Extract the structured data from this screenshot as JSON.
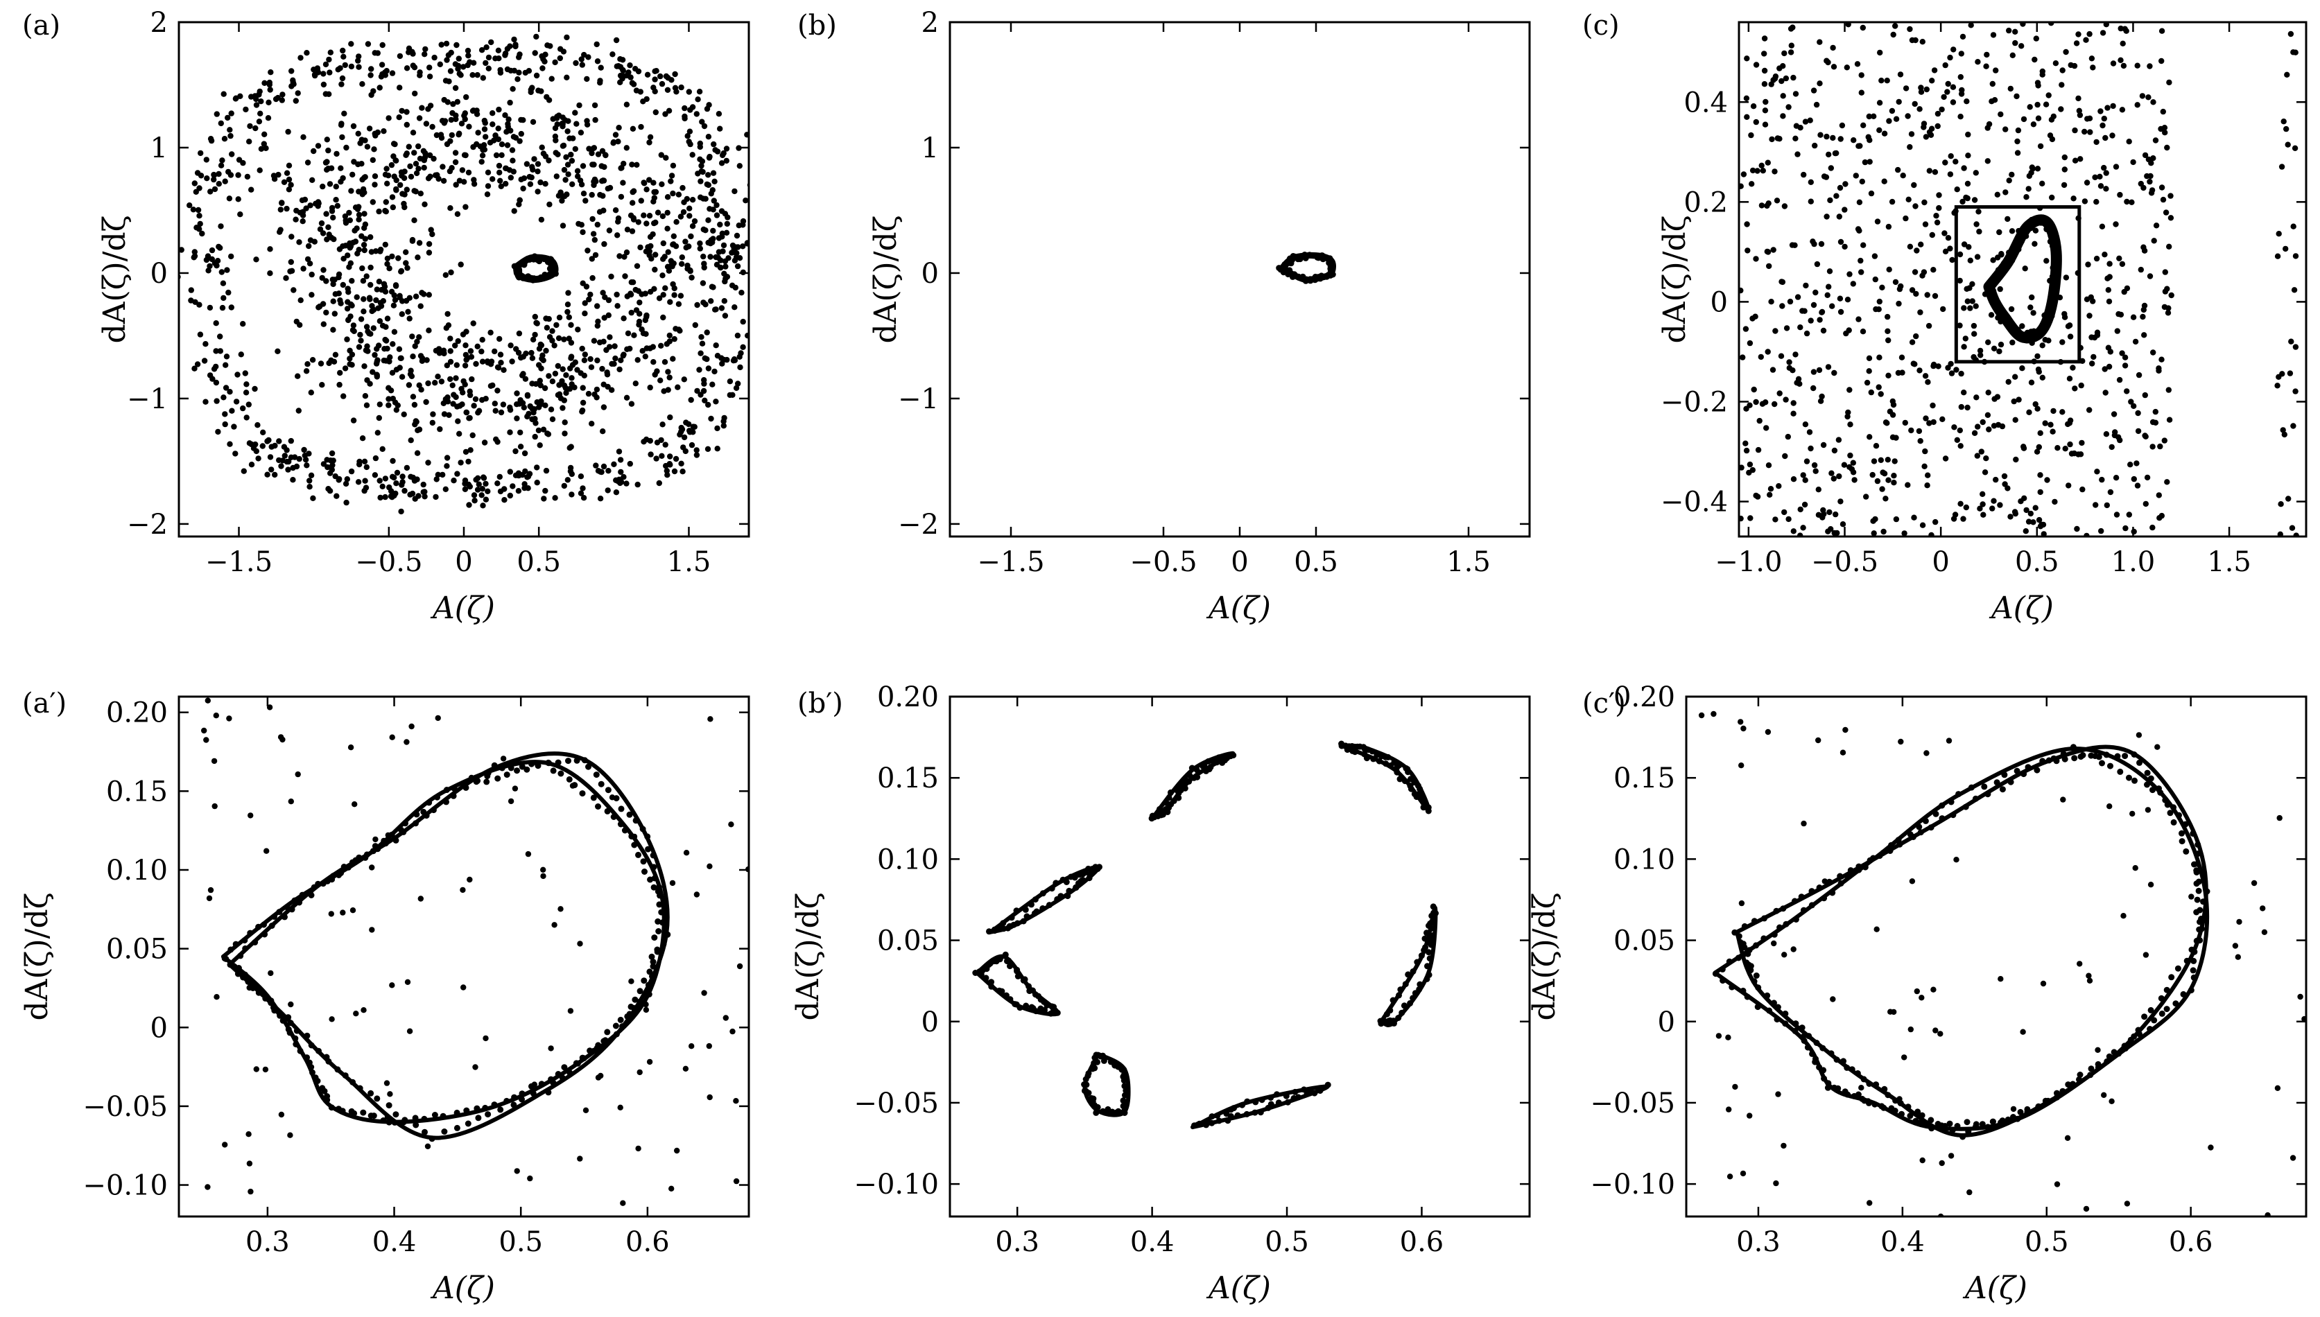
{
  "chart_data": [
    {
      "id": "a",
      "type": "scatter",
      "panel_label": "(a)",
      "xlabel": "A(ζ)",
      "ylabel": "dA(ζ)/dζ",
      "xlim": [
        -1.9,
        1.9
      ],
      "ylim": [
        -2.1,
        2.0
      ],
      "xticks": [
        -1.5,
        -0.5,
        0,
        0.5,
        1.5
      ],
      "xtick_labels": [
        "−1.5",
        "−0.5",
        "0",
        "0.5",
        "1.5"
      ],
      "yticks": [
        -2,
        -1,
        0,
        1,
        2
      ],
      "ytick_labels": [
        "−2",
        "−1",
        "0",
        "1",
        "2"
      ],
      "pattern": "chaotic_attractor",
      "series": [
        {
          "kind": "orbit",
          "cx": 0.05,
          "cy": 0.0,
          "rx": 1.75,
          "ry": 1.7,
          "noise": 0.08,
          "count": 700
        },
        {
          "kind": "orbit",
          "cx": 0.2,
          "cy": 0.05,
          "rx": 1.1,
          "ry": 1.0,
          "noise": 0.22,
          "count": 1200
        },
        {
          "kind": "loop",
          "points": [
            [
              0.35,
              0.05
            ],
            [
              0.45,
              0.12
            ],
            [
              0.58,
              0.1
            ],
            [
              0.6,
              0.0
            ],
            [
              0.48,
              -0.05
            ],
            [
              0.37,
              -0.02
            ],
            [
              0.35,
              0.05
            ]
          ],
          "width": 10
        }
      ]
    },
    {
      "id": "b",
      "type": "scatter",
      "panel_label": "(b)",
      "xlabel": "A(ζ)",
      "ylabel": "dA(ζ)/dζ",
      "xlim": [
        -1.9,
        1.9
      ],
      "ylim": [
        -2.1,
        2.0
      ],
      "xticks": [
        -1.5,
        -0.5,
        0,
        0.5,
        1.5
      ],
      "xtick_labels": [
        "−1.5",
        "−0.5",
        "0",
        "0.5",
        "1.5"
      ],
      "yticks": [
        -2,
        -1,
        0,
        1,
        2
      ],
      "ytick_labels": [
        "−2",
        "−1",
        "0",
        "1",
        "2"
      ],
      "pattern": "small_loop",
      "series": [
        {
          "kind": "loop",
          "points": [
            [
              0.27,
              0.03
            ],
            [
              0.35,
              0.12
            ],
            [
              0.5,
              0.14
            ],
            [
              0.6,
              0.1
            ],
            [
              0.6,
              0.0
            ],
            [
              0.52,
              -0.04
            ],
            [
              0.42,
              -0.05
            ],
            [
              0.3,
              0.02
            ],
            [
              0.27,
              0.03
            ]
          ],
          "width": 9
        }
      ]
    },
    {
      "id": "c",
      "type": "scatter",
      "panel_label": "(c)",
      "xlabel": "A(ζ)",
      "ylabel": "dA(ζ)/dζ",
      "xlim": [
        -1.05,
        1.9
      ],
      "ylim": [
        -0.47,
        0.56
      ],
      "xticks": [
        -1.0,
        -0.5,
        0,
        0.5,
        1.0,
        1.5
      ],
      "xtick_labels": [
        "−1.0",
        "−0.5",
        "0",
        "0.5",
        "1.0",
        "1.5"
      ],
      "yticks": [
        -0.4,
        -0.2,
        0,
        0.2,
        0.4
      ],
      "ytick_labels": [
        "−0.4",
        "−0.2",
        "0",
        "0.2",
        "0.4"
      ],
      "pattern": "scattered_with_zoom_box",
      "zoom_box": {
        "x0": 0.08,
        "x1": 0.72,
        "y0": -0.12,
        "y1": 0.19
      },
      "series": [
        {
          "kind": "cloud",
          "x0": -1.05,
          "x1": 1.2,
          "y0": -0.47,
          "y1": 0.56,
          "count": 900
        },
        {
          "kind": "cloud",
          "x0": 1.75,
          "x1": 1.85,
          "y0": -0.47,
          "y1": 0.56,
          "count": 30
        },
        {
          "kind": "loop",
          "points": [
            [
              0.25,
              0.03
            ],
            [
              0.35,
              0.08
            ],
            [
              0.45,
              0.15
            ],
            [
              0.55,
              0.16
            ],
            [
              0.6,
              0.1
            ],
            [
              0.58,
              0.0
            ],
            [
              0.52,
              -0.06
            ],
            [
              0.42,
              -0.07
            ],
            [
              0.33,
              -0.03
            ],
            [
              0.28,
              0.0
            ],
            [
              0.25,
              0.03
            ]
          ],
          "width": 16
        }
      ]
    },
    {
      "id": "a2",
      "type": "scatter",
      "panel_label": "(a′)",
      "xlabel": "A(ζ)",
      "ylabel": "dA(ζ)/dζ",
      "xlim": [
        0.23,
        0.68
      ],
      "ylim": [
        -0.12,
        0.21
      ],
      "xticks": [
        0.3,
        0.4,
        0.5,
        0.6
      ],
      "xtick_labels": [
        "0.3",
        "0.4",
        "0.5",
        "0.6"
      ],
      "yticks": [
        -0.1,
        -0.05,
        0,
        0.05,
        0.1,
        0.15,
        0.2
      ],
      "ytick_labels": [
        "−0.10",
        "−0.05",
        "0",
        "0.05",
        "0.10",
        "0.15",
        "0.20"
      ],
      "pattern": "double_loop",
      "series": [
        {
          "kind": "loop",
          "points": [
            [
              0.265,
              0.045
            ],
            [
              0.32,
              0.08
            ],
            [
              0.38,
              0.11
            ],
            [
              0.44,
              0.15
            ],
            [
              0.52,
              0.168
            ],
            [
              0.58,
              0.13
            ],
            [
              0.612,
              0.08
            ],
            [
              0.6,
              0.02
            ],
            [
              0.55,
              -0.02
            ],
            [
              0.48,
              -0.05
            ],
            [
              0.4,
              -0.06
            ],
            [
              0.35,
              -0.05
            ],
            [
              0.33,
              -0.02
            ],
            [
              0.3,
              0.02
            ],
            [
              0.265,
              0.045
            ]
          ],
          "width": 6
        },
        {
          "kind": "loop",
          "points": [
            [
              0.27,
              0.04
            ],
            [
              0.34,
              0.09
            ],
            [
              0.4,
              0.12
            ],
            [
              0.48,
              0.165
            ],
            [
              0.55,
              0.17
            ],
            [
              0.6,
              0.12
            ],
            [
              0.615,
              0.06
            ],
            [
              0.58,
              0.0
            ],
            [
              0.52,
              -0.04
            ],
            [
              0.43,
              -0.07
            ],
            [
              0.36,
              -0.03
            ],
            [
              0.31,
              0.01
            ],
            [
              0.27,
              0.04
            ]
          ],
          "width": 6
        },
        {
          "kind": "cloud",
          "x0": 0.24,
          "x1": 0.68,
          "y0": -0.12,
          "y1": 0.21,
          "count": 110
        }
      ]
    },
    {
      "id": "b2",
      "type": "scatter",
      "panel_label": "(b′)",
      "xlabel": "A(ζ)",
      "ylabel": "dA(ζ)/dζ",
      "xlim": [
        0.25,
        0.68
      ],
      "ylim": [
        -0.12,
        0.2
      ],
      "xticks": [
        0.3,
        0.4,
        0.5,
        0.6
      ],
      "xtick_labels": [
        "0.3",
        "0.4",
        "0.5",
        "0.6"
      ],
      "yticks": [
        -0.1,
        -0.05,
        0,
        0.05,
        0.1,
        0.15,
        0.2
      ],
      "ytick_labels": [
        "−0.10",
        "−0.05",
        "0",
        "0.05",
        "0.10",
        "0.15",
        "0.20"
      ],
      "pattern": "segmented_loops",
      "series": [
        {
          "kind": "loop",
          "points": [
            [
              0.28,
              0.055
            ],
            [
              0.33,
              0.085
            ],
            [
              0.36,
              0.095
            ],
            [
              0.34,
              0.08
            ],
            [
              0.3,
              0.06
            ],
            [
              0.28,
              0.055
            ]
          ],
          "width": 6
        },
        {
          "kind": "loop",
          "points": [
            [
              0.27,
              0.03
            ],
            [
              0.29,
              0.04
            ],
            [
              0.31,
              0.02
            ],
            [
              0.33,
              0.005
            ],
            [
              0.3,
              0.01
            ],
            [
              0.27,
              0.03
            ]
          ],
          "width": 6
        },
        {
          "kind": "loop",
          "points": [
            [
              0.36,
              -0.02
            ],
            [
              0.38,
              -0.03
            ],
            [
              0.38,
              -0.055
            ],
            [
              0.36,
              -0.055
            ],
            [
              0.35,
              -0.04
            ],
            [
              0.36,
              -0.02
            ]
          ],
          "width": 6
        },
        {
          "kind": "loop",
          "points": [
            [
              0.43,
              -0.065
            ],
            [
              0.48,
              -0.055
            ],
            [
              0.53,
              -0.04
            ],
            [
              0.47,
              -0.05
            ],
            [
              0.43,
              -0.065
            ]
          ],
          "width": 6
        },
        {
          "kind": "loop",
          "points": [
            [
              0.57,
              0.0
            ],
            [
              0.6,
              0.04
            ],
            [
              0.61,
              0.07
            ],
            [
              0.605,
              0.03
            ],
            [
              0.58,
              0.0
            ],
            [
              0.57,
              0.0
            ]
          ],
          "width": 6
        },
        {
          "kind": "loop",
          "points": [
            [
              0.54,
              0.17
            ],
            [
              0.58,
              0.155
            ],
            [
              0.605,
              0.13
            ],
            [
              0.59,
              0.155
            ],
            [
              0.56,
              0.168
            ],
            [
              0.54,
              0.17
            ]
          ],
          "width": 6
        },
        {
          "kind": "loop",
          "points": [
            [
              0.4,
              0.125
            ],
            [
              0.43,
              0.155
            ],
            [
              0.46,
              0.165
            ],
            [
              0.43,
              0.15
            ],
            [
              0.41,
              0.13
            ],
            [
              0.4,
              0.125
            ]
          ],
          "width": 6
        },
        {
          "kind": "cloud",
          "x0": 0.27,
          "x1": 0.62,
          "y0": -0.07,
          "y1": 0.17,
          "count": 0
        }
      ]
    },
    {
      "id": "c2",
      "type": "scatter",
      "panel_label": "(c′)",
      "xlabel": "A(ζ)",
      "ylabel": "dA(ζ)/dζ",
      "xlim": [
        0.25,
        0.68
      ],
      "ylim": [
        -0.12,
        0.2
      ],
      "xticks": [
        0.3,
        0.4,
        0.5,
        0.6
      ],
      "xtick_labels": [
        "0.3",
        "0.4",
        "0.5",
        "0.6"
      ],
      "yticks": [
        -0.1,
        -0.05,
        0,
        0.05,
        0.1,
        0.15,
        0.2
      ],
      "ytick_labels": [
        "−0.10",
        "−0.05",
        "0",
        "0.05",
        "0.10",
        "0.15",
        "0.20"
      ],
      "pattern": "double_loop_with_subloops",
      "series": [
        {
          "kind": "loop",
          "points": [
            [
              0.27,
              0.03
            ],
            [
              0.32,
              0.06
            ],
            [
              0.38,
              0.1
            ],
            [
              0.44,
              0.14
            ],
            [
              0.52,
              0.168
            ],
            [
              0.58,
              0.14
            ],
            [
              0.61,
              0.08
            ],
            [
              0.6,
              0.02
            ],
            [
              0.55,
              -0.02
            ],
            [
              0.48,
              -0.06
            ],
            [
              0.42,
              -0.065
            ],
            [
              0.38,
              -0.05
            ],
            [
              0.35,
              -0.04
            ],
            [
              0.33,
              -0.01
            ],
            [
              0.27,
              0.03
            ]
          ],
          "width": 6
        },
        {
          "kind": "loop",
          "points": [
            [
              0.285,
              0.055
            ],
            [
              0.35,
              0.085
            ],
            [
              0.42,
              0.12
            ],
            [
              0.5,
              0.16
            ],
            [
              0.56,
              0.165
            ],
            [
              0.605,
              0.11
            ],
            [
              0.605,
              0.05
            ],
            [
              0.56,
              -0.01
            ],
            [
              0.5,
              -0.05
            ],
            [
              0.44,
              -0.07
            ],
            [
              0.39,
              -0.045
            ],
            [
              0.35,
              -0.02
            ],
            [
              0.3,
              0.02
            ],
            [
              0.285,
              0.055
            ]
          ],
          "width": 6
        },
        {
          "kind": "cloud",
          "x0": 0.26,
          "x1": 0.68,
          "y0": -0.12,
          "y1": 0.19,
          "count": 90
        }
      ]
    }
  ]
}
